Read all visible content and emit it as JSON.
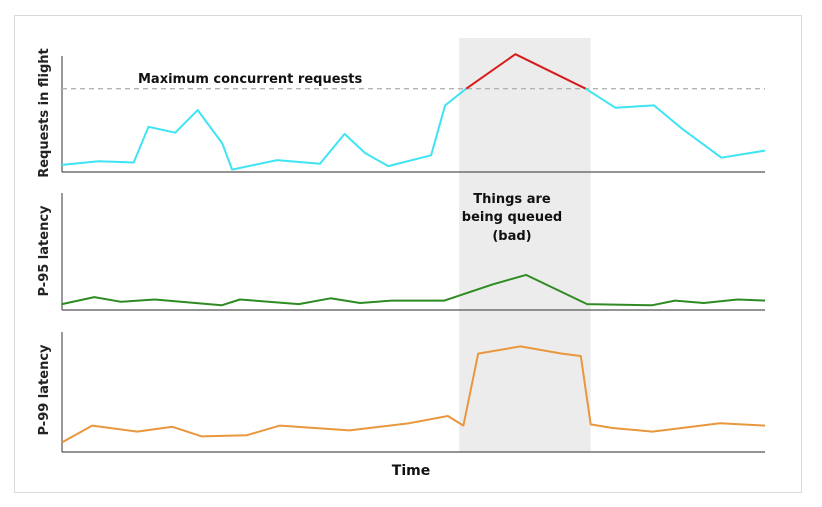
{
  "chart_data": {
    "type": "line",
    "xlabel": "Time",
    "x_range": [
      0,
      100
    ],
    "colors": {
      "requests": "#3fe4f3",
      "over_limit": "#d81b1b",
      "p95": "#2e8b22",
      "p99": "#e8973d",
      "highlight": "#ececec",
      "limit_line": "#b3b3b3"
    },
    "highlight_region": {
      "x_start": 56.5,
      "x_end": 75.2,
      "annotation_lines": [
        "Things are",
        "being queued",
        "(bad)"
      ]
    },
    "panels": [
      {
        "id": "requests",
        "ylabel": "Requests in flight",
        "ylim": [
          0,
          100
        ],
        "reference_line": {
          "label": "Maximum concurrent requests",
          "value": 70
        },
        "series": [
          {
            "color_key": "requests",
            "x": [
              0,
              5.2,
              10.2,
              12.3,
              16.1,
              19.3,
              22.8,
              24.2,
              30.6,
              36.7,
              40.2,
              43.1,
              46.4,
              52.5,
              54.5,
              57.5
            ],
            "values": [
              6,
              9,
              8,
              38,
              33,
              52,
              24,
              2,
              10,
              7,
              32,
              16,
              5,
              14,
              56,
              70
            ]
          },
          {
            "color_key": "over_limit",
            "x": [
              57.5,
              64.5,
              74.5
            ],
            "values": [
              70,
              99,
              70
            ]
          },
          {
            "color_key": "requests",
            "x": [
              74.5,
              78.7,
              84.2,
              88.3,
              93.8,
              100
            ],
            "values": [
              70,
              54,
              56,
              36,
              12,
              18
            ]
          }
        ]
      },
      {
        "id": "p95",
        "ylabel": "P-95 latency",
        "ylim": [
          0,
          100
        ],
        "series": [
          {
            "color_key": "p95",
            "x": [
              0,
              4.6,
              8.4,
              13.2,
              22.7,
              25.3,
              33.7,
              38.2,
              42.4,
              46.9,
              54.4,
              61.3,
              66.0,
              74.7,
              83.9,
              87.2,
              91.3,
              96.1,
              100
            ],
            "values": [
              5,
              11,
              7,
              9,
              4,
              9,
              5,
              10,
              6,
              8,
              8,
              22,
              30,
              5,
              4,
              8,
              6,
              9,
              8
            ]
          }
        ]
      },
      {
        "id": "p99",
        "ylabel": "P-99 latency",
        "ylim": [
          0,
          100
        ],
        "series": [
          {
            "color_key": "p99",
            "x": [
              0,
              4.3,
              10.7,
              15.7,
              19.9,
              26.3,
              31.0,
              40.9,
              49.4,
              54.9,
              57.1,
              59.2,
              65.2,
              71.1,
              73.8,
              75.2,
              78.3,
              84.0,
              93.6,
              100
            ],
            "values": [
              8,
              22,
              17,
              21,
              13,
              14,
              22,
              18,
              24,
              30,
              22,
              82,
              88,
              82,
              80,
              23,
              20,
              17,
              24,
              22
            ]
          }
        ]
      }
    ]
  }
}
